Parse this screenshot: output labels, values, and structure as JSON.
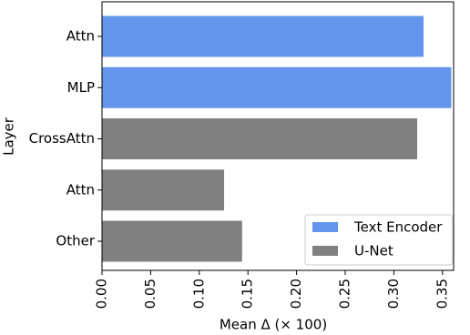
{
  "chart_data": {
    "type": "barh",
    "categories": [
      "Attn",
      "MLP",
      "CrossAttn",
      "Attn",
      "Other"
    ],
    "series": [
      {
        "name": "Text Encoder",
        "color": "#6495ed",
        "values": [
          0.3305,
          0.359,
          null,
          null,
          null
        ]
      },
      {
        "name": "U-Net",
        "color": "#808080",
        "values": [
          null,
          null,
          0.324,
          0.1255,
          0.144
        ]
      }
    ],
    "x_label": "Mean Δ (× 100)",
    "y_label": "Layer",
    "xlim": [
      0,
      0.3614
    ],
    "xticks": [
      {
        "value": 0,
        "label": "0.00"
      },
      0.05,
      {
        "value": 0.1,
        "label": "0.10"
      },
      0.15,
      {
        "value": 0.2,
        "label": "0.20"
      },
      0.25,
      {
        "value": 0.3,
        "label": "0.30"
      },
      0.35
    ],
    "legend": "lower right"
  }
}
